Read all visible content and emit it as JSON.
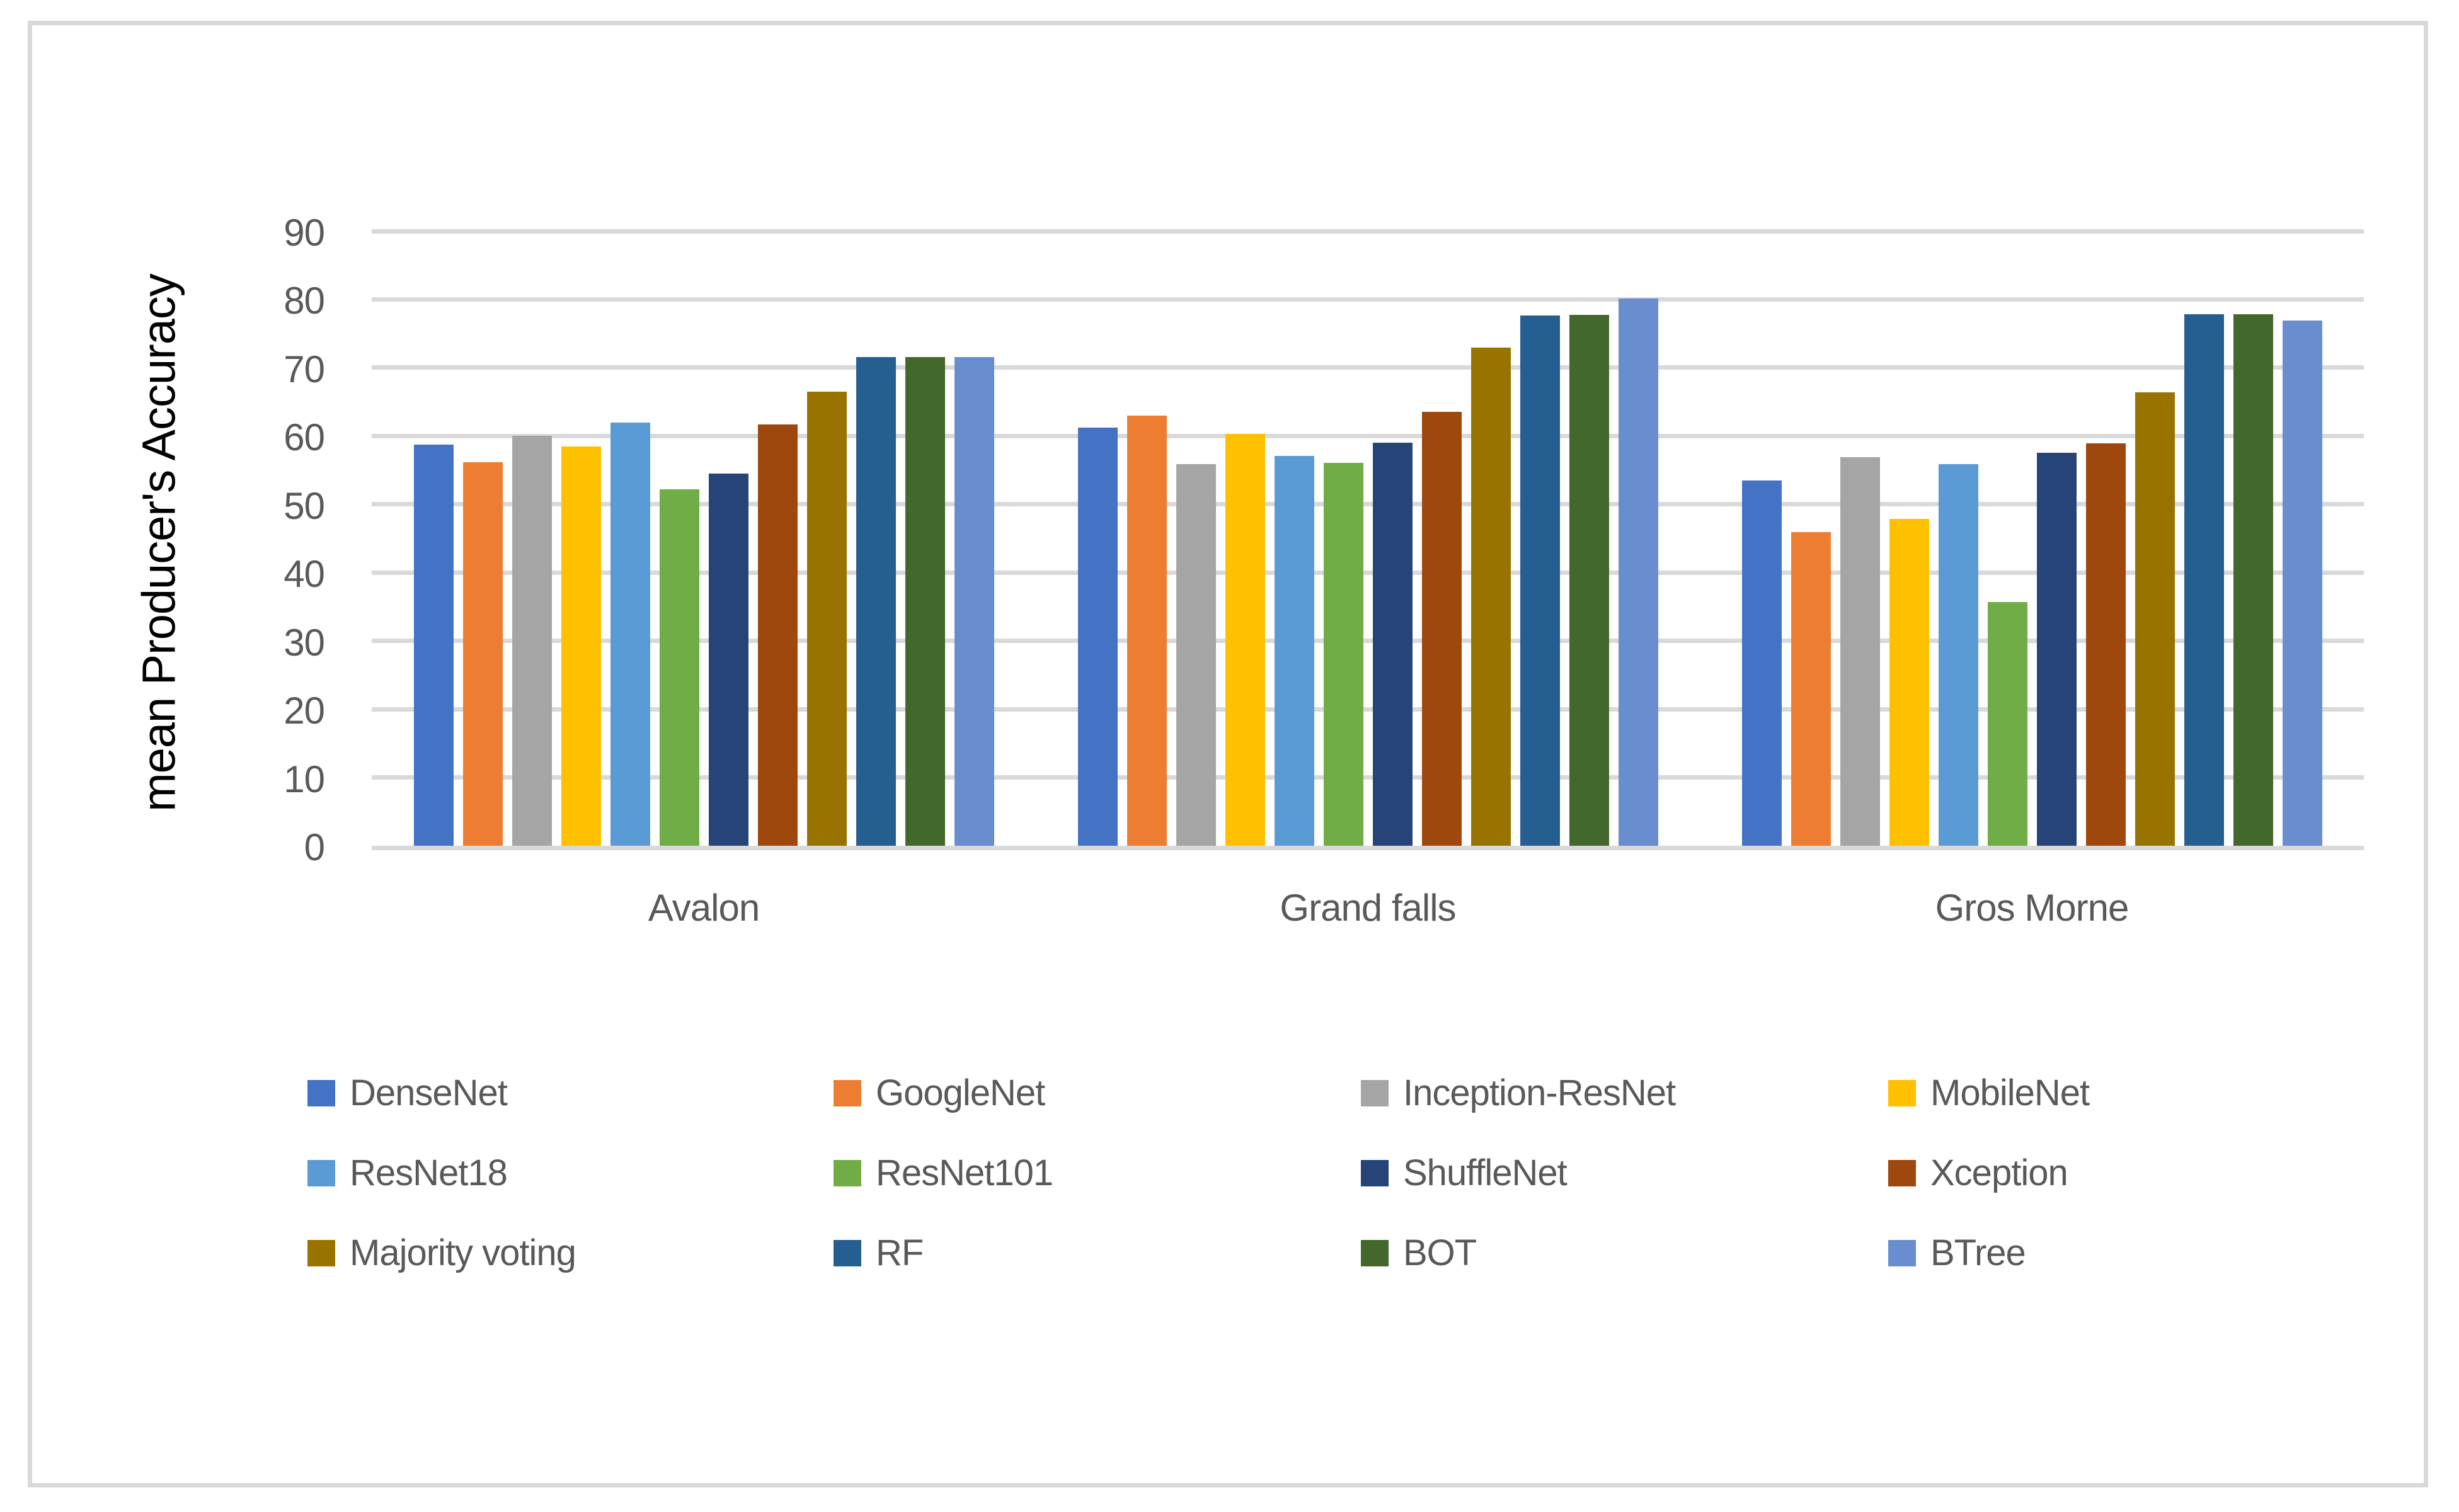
{
  "figure": {
    "background": "#FFFFFF",
    "border_color": "#D9D9D9"
  },
  "chart_data": {
    "type": "bar",
    "title": "",
    "xlabel": "",
    "ylabel": "mean Producer's Accuracy",
    "categories": [
      "Avalon",
      "Grand falls",
      "Gros Morne"
    ],
    "series": [
      {
        "name": "DenseNet",
        "color": "#4472C4",
        "values": [
          58.7,
          61.2,
          53.5
        ]
      },
      {
        "name": "GoogleNet",
        "color": "#ED7D31",
        "values": [
          56.2,
          63.0,
          45.9
        ]
      },
      {
        "name": "Inception-ResNet",
        "color": "#A5A5A5",
        "values": [
          60.0,
          55.9,
          56.9
        ]
      },
      {
        "name": "MobileNet",
        "color": "#FFC000",
        "values": [
          58.5,
          60.3,
          47.9
        ]
      },
      {
        "name": "ResNet18",
        "color": "#5B9BD5",
        "values": [
          62.0,
          57.1,
          55.9
        ]
      },
      {
        "name": "ResNet101",
        "color": "#70AD47",
        "values": [
          52.2,
          56.1,
          35.7
        ]
      },
      {
        "name": "ShuffleNet",
        "color": "#264478",
        "values": [
          54.5,
          59.0,
          57.5
        ]
      },
      {
        "name": "Xception",
        "color": "#9E480E",
        "values": [
          61.7,
          63.5,
          58.9
        ]
      },
      {
        "name": "Majority voting",
        "color": "#997300",
        "values": [
          66.5,
          72.9,
          66.4
        ]
      },
      {
        "name": "RF",
        "color": "#255E91",
        "values": [
          71.6,
          77.6,
          77.8
        ]
      },
      {
        "name": "BOT",
        "color": "#43682B",
        "values": [
          71.6,
          77.7,
          77.8
        ]
      },
      {
        "name": "BTree",
        "color": "#698ED0",
        "values": [
          71.6,
          80.1,
          76.9
        ]
      }
    ],
    "y_axis": {
      "min": 0,
      "max": 90,
      "step": 10,
      "tick_labels": [
        "0",
        "10",
        "20",
        "30",
        "40",
        "50",
        "60",
        "70",
        "80",
        "90"
      ]
    },
    "grid": true,
    "legend_position": "bottom"
  },
  "colors": {
    "gridline": "#D9D9D9",
    "axis_line": "#D9D9D9",
    "tick_text": "#595959",
    "category_text": "#595959",
    "legend_text": "#595959",
    "axis_title_text": "#000000"
  }
}
